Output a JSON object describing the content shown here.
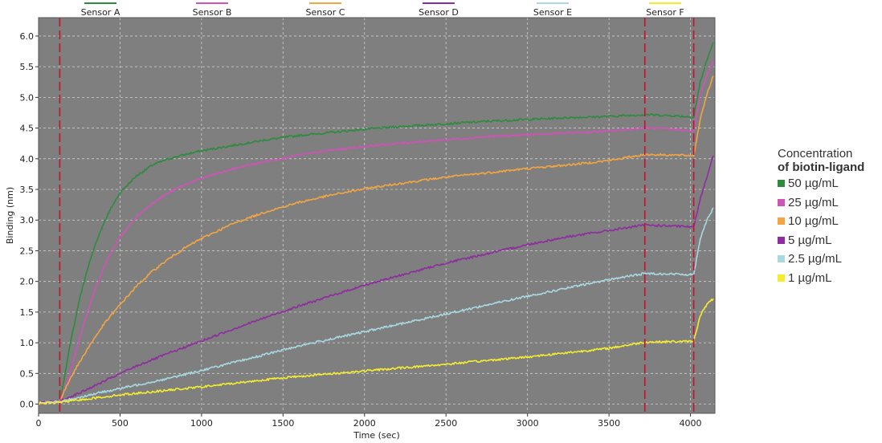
{
  "chart_data": {
    "type": "line",
    "xlabel": "Time (sec)",
    "ylabel": "Binding (nm)",
    "xlim": [
      0,
      4150
    ],
    "ylim": [
      -0.15,
      6.3
    ],
    "x_ticks": [
      0,
      500,
      1000,
      1500,
      2000,
      2500,
      3000,
      3500,
      4000
    ],
    "y_ticks": [
      0.0,
      0.5,
      1.0,
      1.5,
      2.0,
      2.5,
      3.0,
      3.5,
      4.0,
      4.5,
      5.0,
      5.5,
      6.0
    ],
    "x_tick_labels": [
      "0",
      "500",
      "1000",
      "1500",
      "2000",
      "2500",
      "3000",
      "3500",
      "4000"
    ],
    "y_tick_labels": [
      "0.0",
      "0.5",
      "1.0",
      "1.5",
      "2.0",
      "2.5",
      "3.0",
      "3.5",
      "4.0",
      "4.5",
      "5.0",
      "5.5",
      "6.0"
    ],
    "grid": true,
    "plot_background": "#7f7f7f",
    "marker_line_color": "#c8102e",
    "vertical_markers_x": [
      130,
      3720,
      4020
    ],
    "top_legend_placement": "top",
    "series": [
      {
        "name": "Sensor A",
        "color": "#2e8b3e",
        "x": [
          0,
          130,
          150,
          175,
          200,
          250,
          300,
          350,
          400,
          450,
          500,
          600,
          700,
          800,
          900,
          1000,
          1200,
          1400,
          1600,
          1800,
          2000,
          2250,
          2500,
          2750,
          3000,
          3250,
          3500,
          3720,
          3900,
          4020,
          4060,
          4100,
          4140
        ],
        "y": [
          0.02,
          0.04,
          0.3,
          0.7,
          1.05,
          1.7,
          2.2,
          2.62,
          2.95,
          3.22,
          3.45,
          3.72,
          3.9,
          4.0,
          4.07,
          4.13,
          4.22,
          4.31,
          4.38,
          4.43,
          4.48,
          4.53,
          4.57,
          4.61,
          4.64,
          4.67,
          4.69,
          4.72,
          4.7,
          4.68,
          5.25,
          5.6,
          5.9
        ]
      },
      {
        "name": "Sensor B",
        "color": "#d053b8",
        "x": [
          0,
          130,
          175,
          250,
          300,
          350,
          400,
          450,
          500,
          600,
          700,
          800,
          900,
          1000,
          1200,
          1400,
          1600,
          1800,
          2000,
          2250,
          2500,
          2750,
          3000,
          3250,
          3500,
          3720,
          3900,
          4020,
          4060,
          4100,
          4140
        ],
        "y": [
          0.02,
          0.04,
          0.35,
          1.05,
          1.5,
          1.9,
          2.22,
          2.5,
          2.72,
          3.05,
          3.28,
          3.45,
          3.58,
          3.68,
          3.84,
          3.96,
          4.06,
          4.14,
          4.2,
          4.26,
          4.31,
          4.36,
          4.39,
          4.42,
          4.45,
          4.5,
          4.48,
          4.45,
          5.05,
          5.35,
          5.6
        ]
      },
      {
        "name": "Sensor C",
        "color": "#f2a541",
        "x": [
          0,
          130,
          200,
          300,
          400,
          500,
          600,
          700,
          800,
          900,
          1000,
          1200,
          1400,
          1600,
          1800,
          2000,
          2250,
          2500,
          2750,
          3000,
          3250,
          3500,
          3720,
          3900,
          4020,
          4060,
          4100,
          4140
        ],
        "y": [
          0.02,
          0.05,
          0.45,
          0.9,
          1.3,
          1.62,
          1.92,
          2.17,
          2.37,
          2.55,
          2.7,
          2.95,
          3.14,
          3.29,
          3.41,
          3.51,
          3.61,
          3.7,
          3.77,
          3.84,
          3.9,
          3.97,
          4.07,
          4.06,
          4.05,
          4.65,
          5.05,
          5.35
        ]
      },
      {
        "name": "Sensor D",
        "color": "#8e2d9f",
        "x": [
          0,
          130,
          250,
          400,
          600,
          800,
          1000,
          1200,
          1400,
          1600,
          1800,
          2000,
          2250,
          2500,
          2750,
          3000,
          3250,
          3500,
          3720,
          3900,
          4020,
          4060,
          4100,
          4140
        ],
        "y": [
          0.02,
          0.05,
          0.18,
          0.37,
          0.62,
          0.83,
          1.03,
          1.23,
          1.42,
          1.6,
          1.77,
          1.94,
          2.12,
          2.3,
          2.45,
          2.6,
          2.73,
          2.83,
          2.92,
          2.9,
          2.89,
          3.35,
          3.7,
          4.05
        ]
      },
      {
        "name": "Sensor E",
        "color": "#a8d8e2",
        "x": [
          0,
          130,
          400,
          800,
          1200,
          1600,
          2000,
          2500,
          3000,
          3500,
          3720,
          3900,
          4020,
          4060,
          4100,
          4140
        ],
        "y": [
          0.02,
          0.04,
          0.2,
          0.42,
          0.68,
          0.95,
          1.18,
          1.47,
          1.76,
          2.03,
          2.13,
          2.12,
          2.11,
          2.7,
          3.0,
          3.2
        ]
      },
      {
        "name": "Sensor F",
        "color": "#f5ec2e",
        "x": [
          0,
          130,
          500,
          1000,
          1500,
          2000,
          2500,
          3000,
          3500,
          3720,
          3900,
          4020,
          4060,
          4100,
          4140
        ],
        "y": [
          0.01,
          0.03,
          0.15,
          0.28,
          0.43,
          0.54,
          0.65,
          0.77,
          0.91,
          1.01,
          1.02,
          1.02,
          1.45,
          1.62,
          1.72
        ]
      }
    ]
  },
  "side_legend": {
    "title_line1": "Concentration",
    "title_line2": "of biotin-ligand",
    "items": [
      "50 µg/mL",
      "25 µg/mL",
      "10 µg/mL",
      "5 µg/mL",
      "2.5 µg/mL",
      "1 µg/mL"
    ]
  }
}
